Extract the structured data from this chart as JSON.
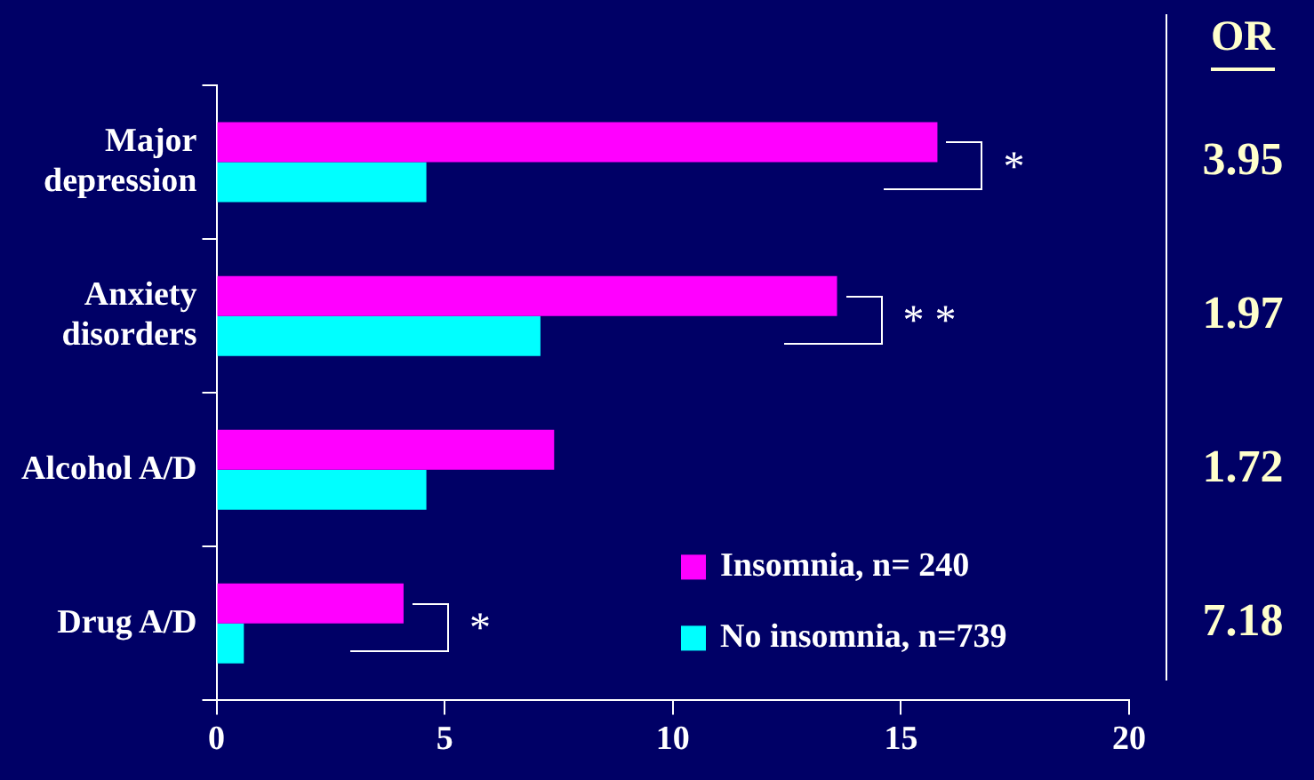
{
  "chart_data": {
    "type": "bar",
    "orientation": "horizontal",
    "categories": [
      "Major depression",
      "Anxiety disorders",
      "Alcohol A/D",
      "Drug A/D"
    ],
    "series": [
      {
        "name": "Insomnia, n= 240",
        "color": "#ff00ff",
        "values": [
          15.8,
          13.6,
          7.4,
          4.1
        ]
      },
      {
        "name": "No insomnia, n=739",
        "color": "#00ffff",
        "values": [
          4.6,
          7.1,
          4.6,
          0.6
        ]
      }
    ],
    "xlim": [
      0,
      20
    ],
    "xticks": [
      0,
      5,
      10,
      15,
      20
    ],
    "grid": false,
    "legend": "bottom right",
    "annotations": [
      "OR",
      "3.95",
      "1.97",
      "1.72",
      "7.18",
      "*",
      "* *",
      "*"
    ]
  }
}
